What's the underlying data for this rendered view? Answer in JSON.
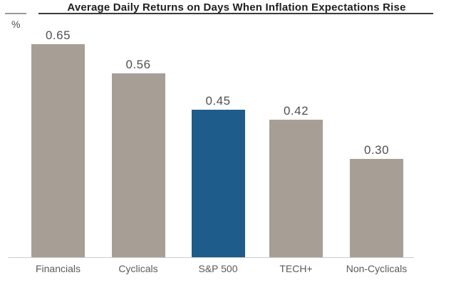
{
  "chart_data": {
    "type": "bar",
    "title": "Average Daily Returns on Days When Inflation Expectations Rise",
    "unit_label": "%",
    "categories": [
      "Financials",
      "Cyclicals",
      "S&P 500",
      "TECH+",
      "Non-Cyclicals"
    ],
    "values": [
      0.65,
      0.56,
      0.45,
      0.42,
      0.3
    ],
    "value_labels": [
      "0.65",
      "0.56",
      "0.45",
      "0.42",
      "0.30"
    ],
    "highlight_index": 2,
    "highlighted_category": "S&P 500",
    "colors": {
      "bar_default": "#a79e95",
      "bar_highlight": "#1e5c8b",
      "title_text": "#1f1f1f",
      "value_label_text": "#4f4f4f",
      "category_label_text": "#5a5a5a",
      "baseline": "#cccccc"
    },
    "xlabel": "",
    "ylabel": "%",
    "ylim": [
      0,
      0.7
    ],
    "grid": false,
    "legend": false
  }
}
